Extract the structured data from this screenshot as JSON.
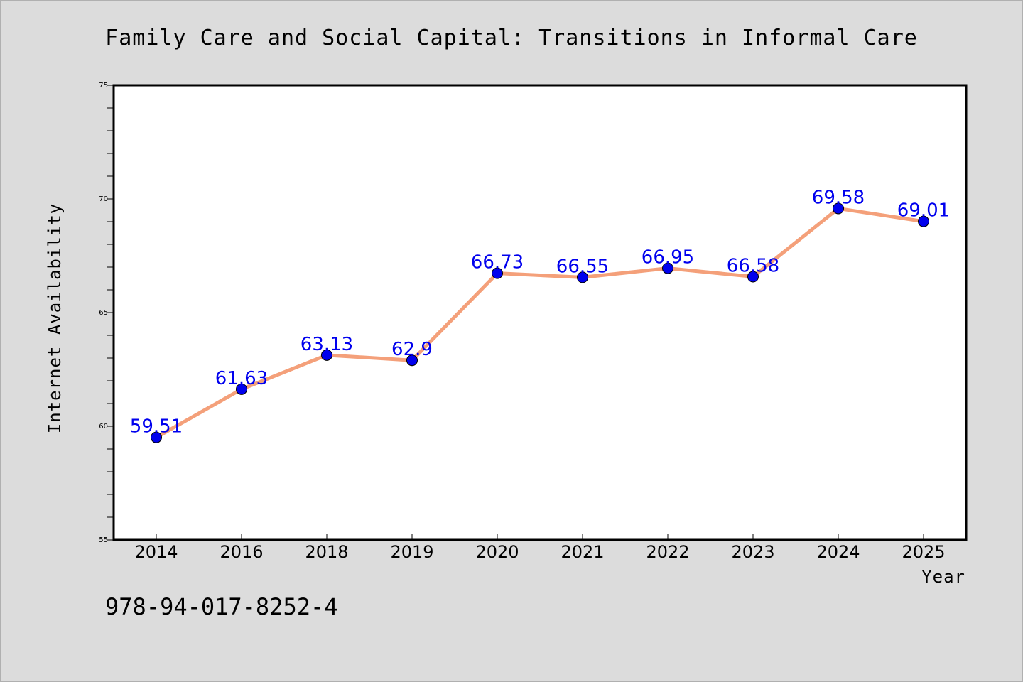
{
  "chart_data": {
    "type": "line",
    "title": "Family Care and Social Capital: Transitions in Informal Care",
    "xlabel": "Year",
    "ylabel": "Internet Availability",
    "categories": [
      "2014",
      "2016",
      "2018",
      "2019",
      "2020",
      "2021",
      "2022",
      "2023",
      "2024",
      "2025"
    ],
    "series": [
      {
        "values": [
          59.51,
          61.63,
          63.13,
          62.9,
          66.73,
          66.55,
          66.95,
          66.58,
          69.58,
          69.01
        ],
        "labels": [
          "59.51",
          "61.63",
          "63.13",
          "62.9",
          "66.73",
          "66.55",
          "66.95",
          "66.58",
          "69.58",
          "69.01"
        ],
        "line_color": "#f4a07a",
        "marker_color": "#0000ee",
        "label_color": "#0000ee"
      }
    ],
    "ylim": [
      55,
      75
    ],
    "yticks": [
      "55",
      "60",
      "65",
      "70",
      "75"
    ],
    "grid": false,
    "legend": "none"
  },
  "footnote": "978-94-017-8252-4",
  "colors": {
    "background": "#dcdcdc",
    "plot_background": "#ffffff"
  }
}
